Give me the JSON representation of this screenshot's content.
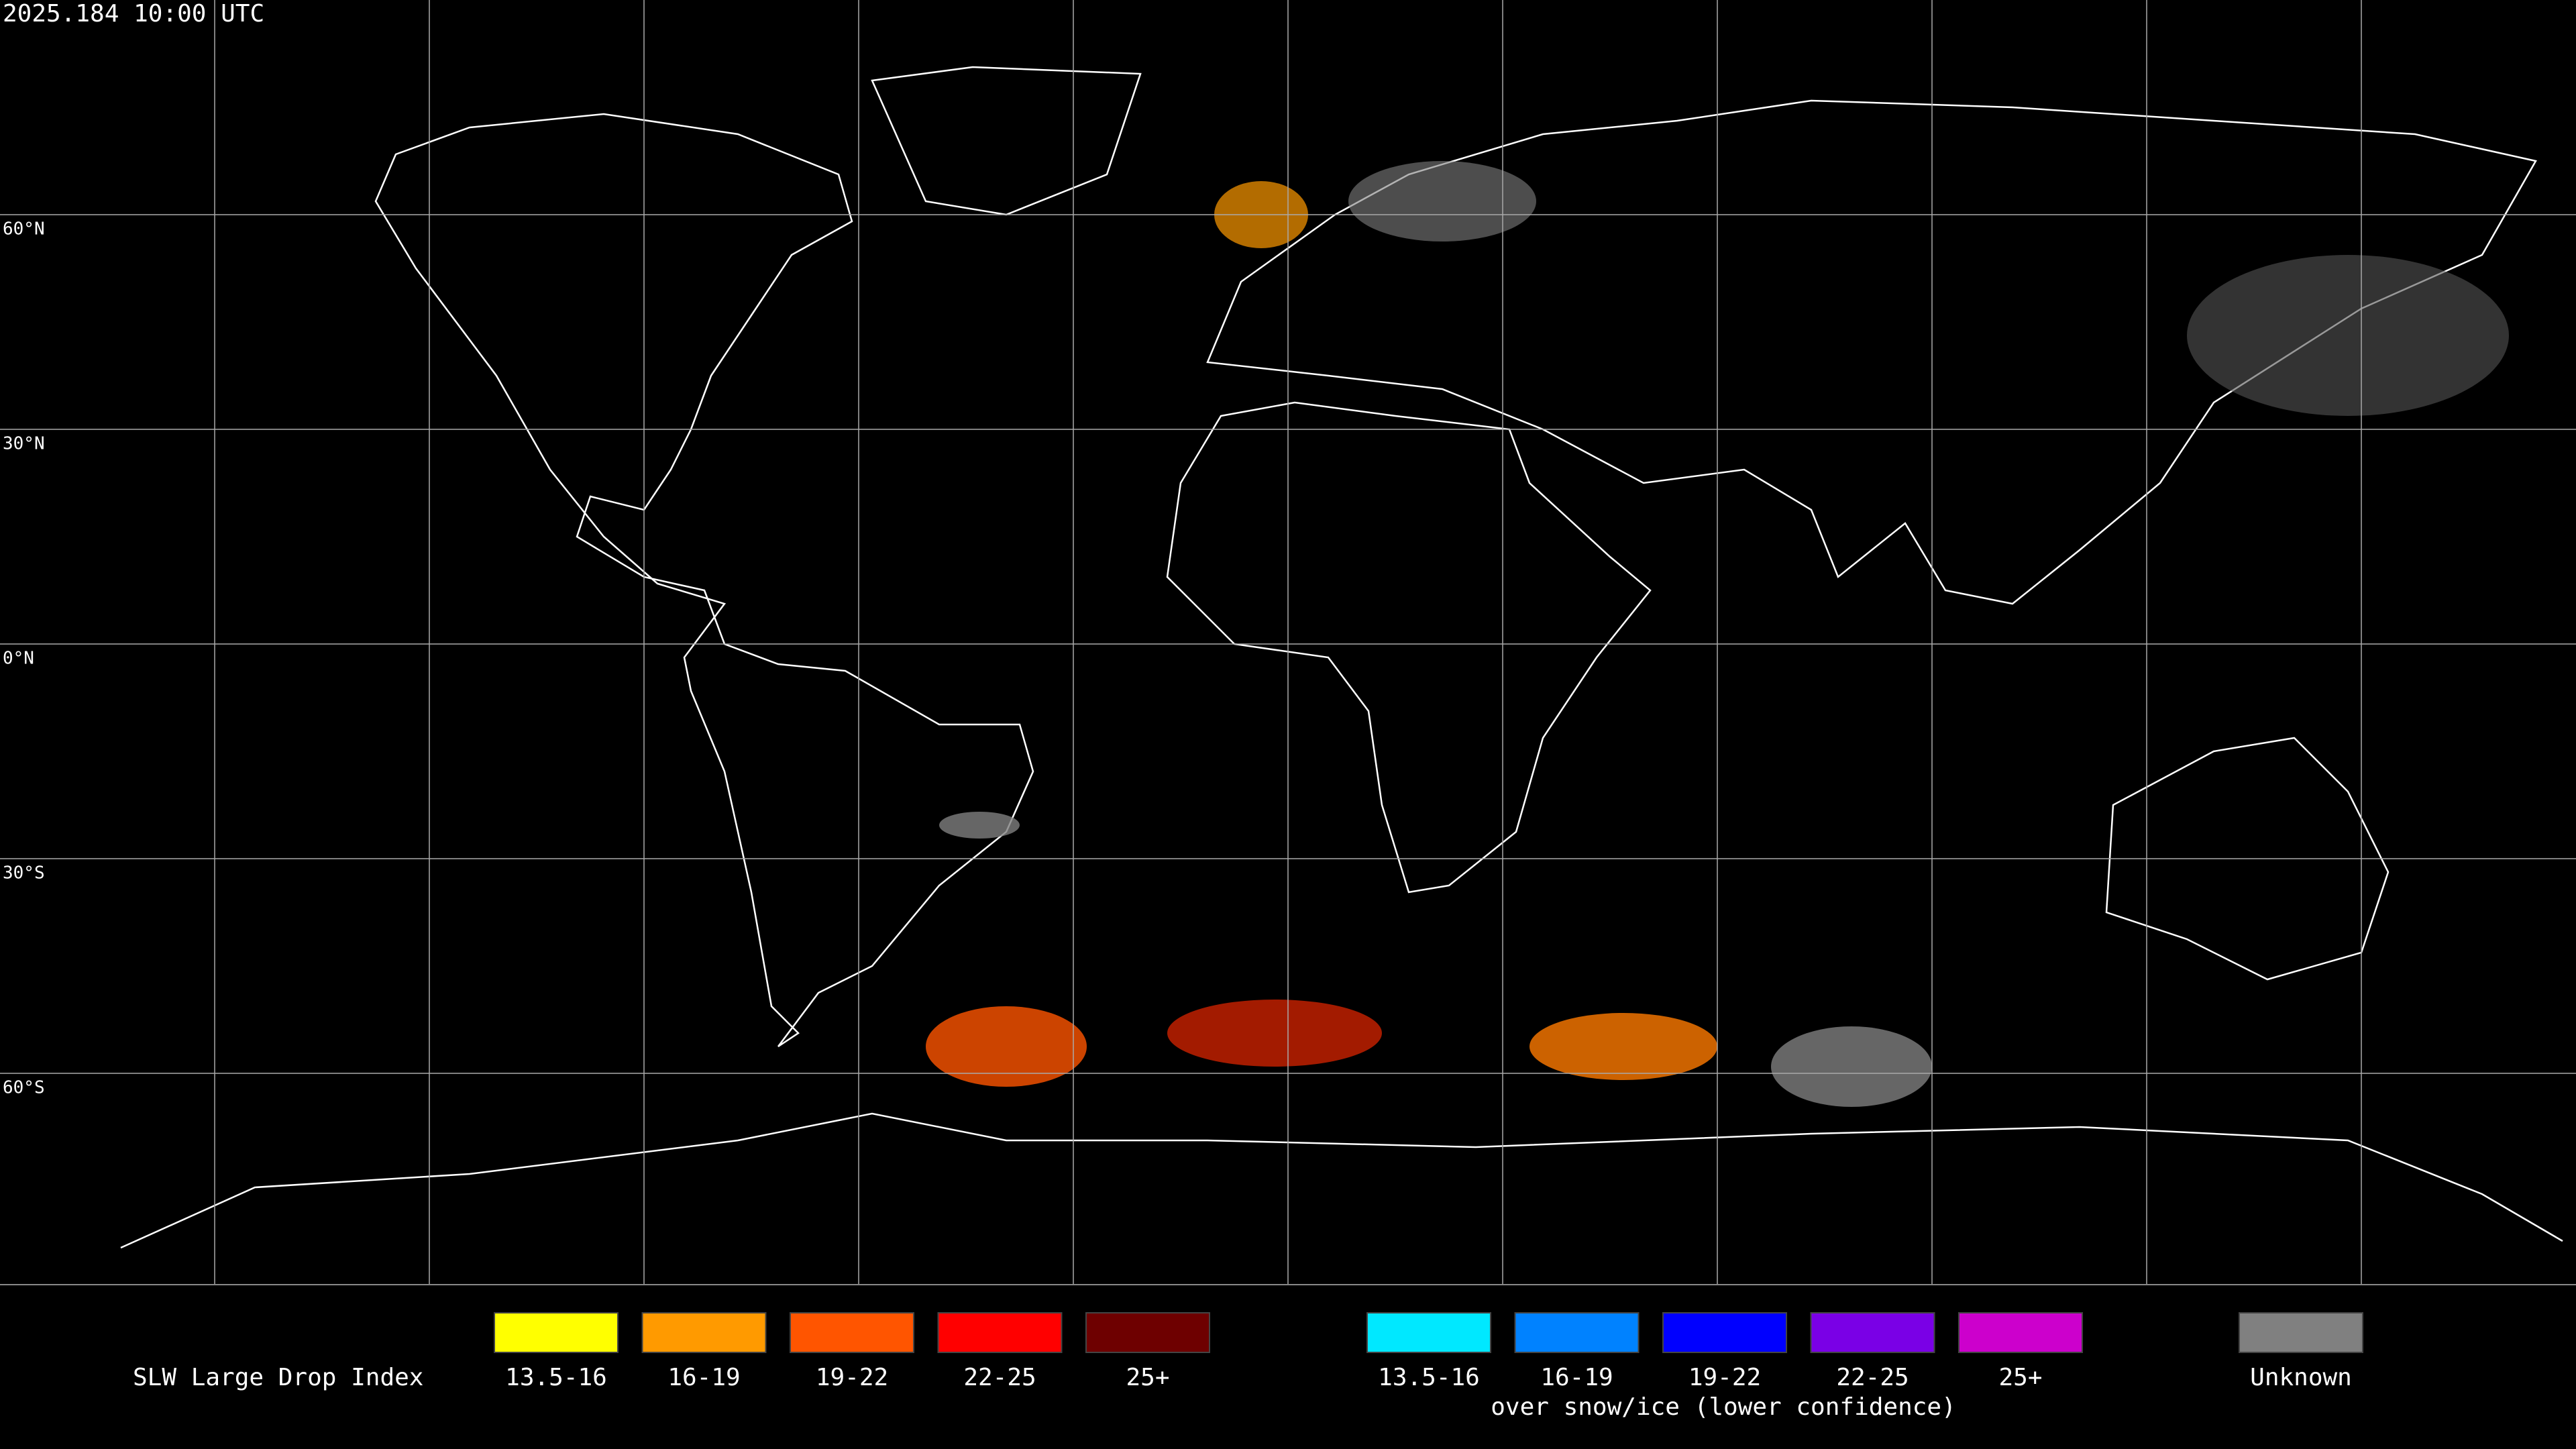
{
  "header": {
    "timestamp": "2025.184 10:00 UTC"
  },
  "map": {
    "lat_labels": [
      "60°N",
      "30°N",
      "0°N",
      "30°S",
      "60°S"
    ],
    "meridian_count": 11
  },
  "legend": {
    "title": "SLW Large Drop Index",
    "liquid": [
      {
        "label": "13.5-16",
        "color": "#ffff00"
      },
      {
        "label": "16-19",
        "color": "#ff9a00"
      },
      {
        "label": "19-22",
        "color": "#ff5500"
      },
      {
        "label": "22-25",
        "color": "#ff0000"
      },
      {
        "label": "25+",
        "color": "#6e0000"
      }
    ],
    "snow": [
      {
        "label": "13.5-16",
        "color": "#00e8ff"
      },
      {
        "label": "16-19",
        "color": "#0082ff"
      },
      {
        "label": "19-22",
        "color": "#0000ff"
      },
      {
        "label": "22-25",
        "color": "#7a00e6"
      },
      {
        "label": "25+",
        "color": "#cc00cc"
      }
    ],
    "snow_caption": "over snow/ice (lower confidence)",
    "unknown": {
      "label": "Unknown",
      "color": "#808080"
    }
  }
}
